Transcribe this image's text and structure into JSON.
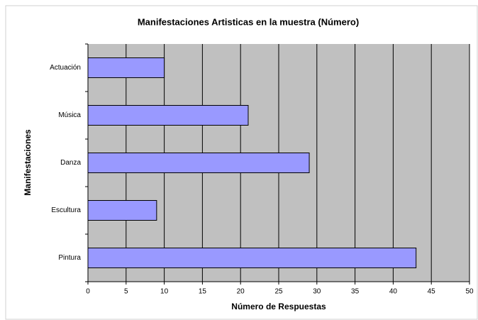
{
  "chart_data": {
    "type": "barh",
    "title": "Manifestaciones Artisticas en la muestra (Número)",
    "x_label": "Número de Respuestas",
    "y_label": "Manifestaciones",
    "categories": [
      "Actuación",
      "Música",
      "Danza",
      "Escultura",
      "Pintura"
    ],
    "values": [
      10,
      21,
      29,
      9,
      43
    ],
    "color": "#9999ff",
    "xlim": [
      0,
      50
    ],
    "xticks": [
      0,
      5,
      10,
      15,
      20,
      25,
      30,
      35,
      40,
      45,
      50
    ],
    "grid": true
  }
}
